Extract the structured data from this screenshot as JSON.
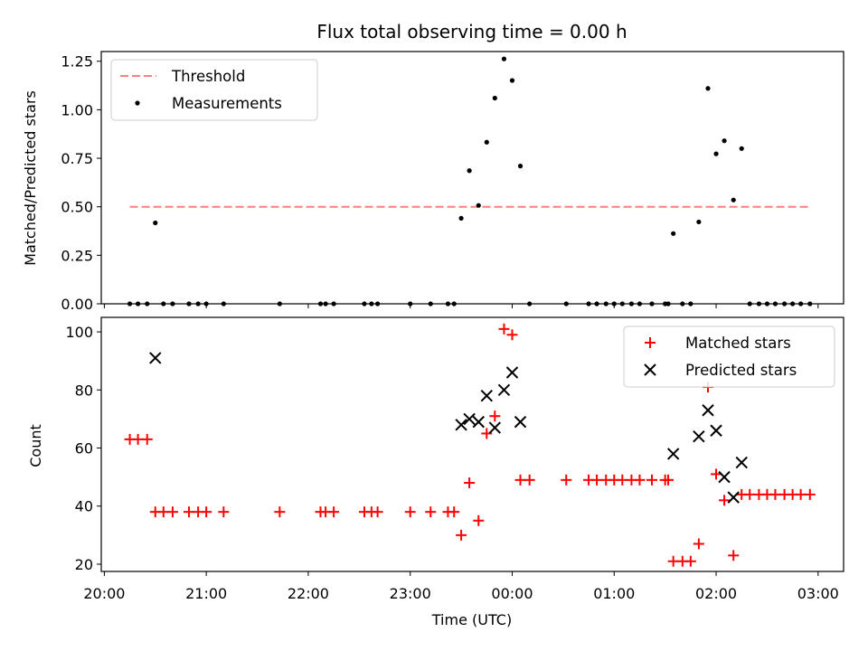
{
  "title": "Flux total observing time = 0.00 h",
  "colors": {
    "threshold": "#ff7f7f",
    "measurements": "#000000",
    "matched": "#ff0000",
    "predicted": "#000000"
  },
  "chart_data": [
    {
      "type": "scatter",
      "panel": "top",
      "title": "Flux total observing time = 0.00 h",
      "ylabel": "Matched/Predicted stars",
      "xlim_hours": [
        19.97,
        27.25
      ],
      "ylim": [
        0,
        1.3
      ],
      "yticks": [
        0,
        0.25,
        0.5,
        0.75,
        1.0,
        1.25
      ],
      "ytick_labels": [
        "0.00",
        "0.25",
        "0.50",
        "0.75",
        "1.00",
        "1.25"
      ],
      "legend": "upper-left",
      "threshold": {
        "name": "Threshold",
        "y": 0.5,
        "x_start": 20.25,
        "x_end": 26.92
      },
      "series": [
        {
          "name": "Measurements",
          "x": [
            20.25,
            20.33,
            20.42,
            20.5,
            20.58,
            20.67,
            20.83,
            20.92,
            21.0,
            21.17,
            21.72,
            22.12,
            22.17,
            22.25,
            22.55,
            22.62,
            22.68,
            23.0,
            23.2,
            23.37,
            23.43,
            23.5,
            23.58,
            23.67,
            23.75,
            23.83,
            23.92,
            24.0,
            24.08,
            24.17,
            24.53,
            24.75,
            24.83,
            24.92,
            25.0,
            25.08,
            25.17,
            25.25,
            25.37,
            25.5,
            25.53,
            25.58,
            25.67,
            25.75,
            25.83,
            25.92,
            26.0,
            26.08,
            26.17,
            26.25,
            26.33,
            26.42,
            26.5,
            26.58,
            26.67,
            26.75,
            26.83,
            26.92
          ],
          "y": [
            0,
            0,
            0,
            0.417,
            0,
            0,
            0,
            0,
            0,
            0,
            0,
            0,
            0,
            0,
            0,
            0,
            0,
            0,
            0,
            0,
            0,
            0.441,
            0.686,
            0.507,
            0.833,
            1.06,
            1.262,
            1.151,
            0.71,
            0,
            0,
            0,
            0,
            0,
            0,
            0,
            0,
            0,
            0,
            0,
            0,
            0.362,
            0,
            0,
            0.422,
            1.11,
            0.773,
            0.84,
            0.535,
            0.8,
            0,
            0,
            0,
            0,
            0,
            0,
            0,
            0
          ]
        }
      ]
    },
    {
      "type": "scatter",
      "panel": "bottom",
      "xlabel": "Time (UTC)",
      "ylabel": "Count",
      "xlim_hours": [
        19.97,
        27.25
      ],
      "ylim": [
        17.5,
        105
      ],
      "yticks": [
        20,
        40,
        60,
        80,
        100
      ],
      "ytick_labels": [
        "20",
        "40",
        "60",
        "80",
        "100"
      ],
      "xticks": [
        20,
        21,
        22,
        23,
        24,
        25,
        26,
        27
      ],
      "xtick_labels": [
        "20:00",
        "21:00",
        "22:00",
        "23:00",
        "00:00",
        "01:00",
        "02:00",
        "03:00"
      ],
      "legend": "upper-right",
      "series": [
        {
          "name": "Matched stars",
          "marker": "+",
          "x": [
            20.25,
            20.33,
            20.42,
            20.5,
            20.58,
            20.67,
            20.83,
            20.92,
            21.0,
            21.17,
            21.72,
            22.12,
            22.17,
            22.25,
            22.55,
            22.62,
            22.68,
            23.0,
            23.2,
            23.37,
            23.43,
            23.5,
            23.58,
            23.67,
            23.75,
            23.83,
            23.92,
            24.0,
            24.08,
            24.17,
            24.53,
            24.75,
            24.83,
            24.92,
            25.0,
            25.08,
            25.17,
            25.25,
            25.37,
            25.5,
            25.53,
            25.58,
            25.67,
            25.75,
            25.83,
            25.92,
            26.0,
            26.08,
            26.17,
            26.25,
            26.33,
            26.42,
            26.5,
            26.58,
            26.67,
            26.75,
            26.83,
            26.92
          ],
          "y": [
            63,
            63,
            63,
            38,
            38,
            38,
            38,
            38,
            38,
            38,
            38,
            38,
            38,
            38,
            38,
            38,
            38,
            38,
            38,
            38,
            38,
            30,
            48,
            35,
            65,
            71,
            101,
            99,
            49,
            49,
            49,
            49,
            49,
            49,
            49,
            49,
            49,
            49,
            49,
            49,
            49,
            21,
            21,
            21,
            27,
            81,
            51,
            42,
            23,
            44,
            44,
            44,
            44,
            44,
            44,
            44,
            44,
            44
          ]
        },
        {
          "name": "Predicted stars",
          "marker": "x",
          "x": [
            20.5,
            23.5,
            23.58,
            23.67,
            23.75,
            23.83,
            23.92,
            24.0,
            24.08,
            25.58,
            25.83,
            25.92,
            26.0,
            26.08,
            26.17,
            26.25
          ],
          "y": [
            91,
            68,
            70,
            69,
            78,
            67,
            80,
            86,
            69,
            58,
            64,
            73,
            66,
            50,
            43,
            55
          ]
        }
      ]
    }
  ]
}
